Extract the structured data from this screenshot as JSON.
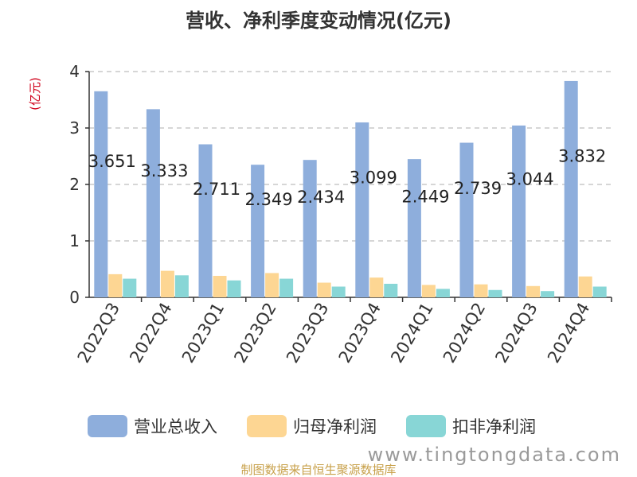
{
  "chart_data": {
    "type": "bar",
    "title": "营收、净利季度变动情况(亿元)",
    "ylabel": "(亿元)",
    "xlabel": "",
    "ylim": [
      0,
      4
    ],
    "yticks": [
      "0",
      "1",
      "2",
      "3",
      "4"
    ],
    "grid": true,
    "legend_position": "bottom",
    "categories": [
      "2022Q3",
      "2022Q4",
      "2023Q1",
      "2023Q2",
      "2023Q3",
      "2023Q4",
      "2024Q1",
      "2024Q2",
      "2024Q3",
      "2024Q4"
    ],
    "series": [
      {
        "name": "营业总收入",
        "color": "#8eaedc",
        "values": [
          3.651,
          3.333,
          2.711,
          2.349,
          2.434,
          3.099,
          2.449,
          2.739,
          3.044,
          3.832
        ],
        "labels": [
          "3.651",
          "3.333",
          "2.711",
          "2.349",
          "2.434",
          "3.099",
          "2.449",
          "2.739",
          "3.044",
          "3.832"
        ]
      },
      {
        "name": "归母净利润",
        "color": "#fdd693",
        "values": [
          0.41,
          0.47,
          0.38,
          0.43,
          0.26,
          0.35,
          0.22,
          0.23,
          0.2,
          0.37
        ]
      },
      {
        "name": "扣非净利润",
        "color": "#88d6d6",
        "values": [
          0.33,
          0.39,
          0.3,
          0.33,
          0.19,
          0.24,
          0.15,
          0.13,
          0.11,
          0.19
        ]
      }
    ]
  },
  "footer": {
    "source": "制图数据来自恒生聚源数据库",
    "watermark": "www.tingtongdata.com"
  }
}
